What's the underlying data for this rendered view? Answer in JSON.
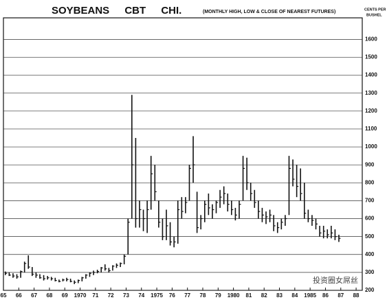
{
  "chart_data": {
    "type": "hlc",
    "title": "SOYBEANS CBT CHI.",
    "subtitle": "(MONTHLY HIGH, LOW & CLOSE OF NEAREST FUTURES)",
    "y_label": [
      "CENTS PER",
      "BUSHEL"
    ],
    "watermark": "投资圈女屌丝",
    "color": "#111111",
    "grid": true,
    "xlim": [
      1965,
      1988.4
    ],
    "ylim": [
      200,
      1720
    ],
    "yticks": [
      200,
      300,
      400,
      500,
      600,
      700,
      800,
      900,
      1000,
      1100,
      1200,
      1300,
      1400,
      1500,
      1600
    ],
    "xticks": [
      {
        "value": 1965,
        "label": "65"
      },
      {
        "value": 1966,
        "label": "66"
      },
      {
        "value": 1967,
        "label": "67"
      },
      {
        "value": 1968,
        "label": "68"
      },
      {
        "value": 1969,
        "label": "69"
      },
      1970,
      {
        "value": 1971,
        "label": "71"
      },
      {
        "value": 1972,
        "label": "72"
      },
      {
        "value": 1973,
        "label": "73"
      },
      {
        "value": 1974,
        "label": "74"
      },
      1975,
      {
        "value": 1976,
        "label": "76"
      },
      {
        "value": 1977,
        "label": "77"
      },
      {
        "value": 1978,
        "label": "78"
      },
      {
        "value": 1979,
        "label": "79"
      },
      1980,
      {
        "value": 1981,
        "label": "81"
      },
      {
        "value": 1982,
        "label": "82"
      },
      {
        "value": 1983,
        "label": "83"
      },
      {
        "value": 1984,
        "label": "84"
      },
      1985,
      {
        "value": 1986,
        "label": "86"
      },
      {
        "value": 1987,
        "label": "87"
      },
      {
        "value": 1988,
        "label": "88"
      }
    ],
    "x": [
      1965.125,
      1965.375,
      1965.625,
      1965.875,
      1966.125,
      1966.375,
      1966.625,
      1966.875,
      1967.125,
      1967.375,
      1967.625,
      1967.875,
      1968.125,
      1968.375,
      1968.625,
      1968.875,
      1969.125,
      1969.375,
      1969.625,
      1969.875,
      1970.125,
      1970.375,
      1970.625,
      1970.875,
      1971.125,
      1971.375,
      1971.625,
      1971.875,
      1972.125,
      1972.375,
      1972.625,
      1972.875,
      1973.125,
      1973.375,
      1973.625,
      1973.875,
      1974.125,
      1974.375,
      1974.625,
      1974.875,
      1975.125,
      1975.375,
      1975.625,
      1975.875,
      1976.125,
      1976.375,
      1976.625,
      1976.875,
      1977.125,
      1977.375,
      1977.625,
      1977.875,
      1978.125,
      1978.375,
      1978.625,
      1978.875,
      1979.125,
      1979.375,
      1979.625,
      1979.875,
      1980.125,
      1980.375,
      1980.625,
      1980.875,
      1981.125,
      1981.375,
      1981.625,
      1981.875,
      1982.125,
      1982.375,
      1982.625,
      1982.875,
      1983.125,
      1983.375,
      1983.625,
      1983.875,
      1984.125,
      1984.375,
      1984.625,
      1984.875,
      1985.125,
      1985.375,
      1985.625,
      1985.875,
      1986.125,
      1986.375,
      1986.625,
      1986.875
    ],
    "high": [
      305,
      300,
      295,
      290,
      310,
      360,
      395,
      330,
      300,
      290,
      285,
      280,
      275,
      270,
      260,
      265,
      270,
      265,
      255,
      260,
      275,
      290,
      300,
      310,
      315,
      330,
      345,
      325,
      340,
      350,
      355,
      400,
      600,
      1290,
      1050,
      700,
      650,
      700,
      950,
      900,
      700,
      600,
      650,
      580,
      500,
      700,
      720,
      720,
      900,
      1060,
      750,
      620,
      700,
      740,
      680,
      700,
      760,
      780,
      740,
      700,
      660,
      700,
      950,
      940,
      800,
      760,
      700,
      660,
      640,
      650,
      620,
      580,
      600,
      620,
      950,
      930,
      900,
      880,
      800,
      650,
      620,
      600,
      560,
      560,
      540,
      560,
      540,
      510
    ],
    "low": [
      285,
      280,
      270,
      265,
      270,
      300,
      320,
      280,
      270,
      265,
      255,
      260,
      255,
      250,
      245,
      250,
      250,
      245,
      235,
      240,
      250,
      265,
      275,
      285,
      295,
      300,
      310,
      300,
      310,
      325,
      330,
      345,
      400,
      600,
      550,
      550,
      530,
      520,
      650,
      700,
      550,
      480,
      480,
      450,
      440,
      460,
      600,
      630,
      700,
      800,
      520,
      540,
      580,
      620,
      600,
      630,
      660,
      680,
      640,
      620,
      590,
      600,
      700,
      760,
      700,
      660,
      600,
      580,
      570,
      580,
      530,
      520,
      540,
      560,
      620,
      780,
      720,
      700,
      600,
      580,
      560,
      540,
      500,
      490,
      490,
      490,
      480,
      470
    ],
    "close": [
      295,
      285,
      280,
      275,
      305,
      350,
      330,
      290,
      285,
      270,
      265,
      270,
      265,
      255,
      250,
      258,
      260,
      250,
      245,
      255,
      270,
      285,
      295,
      300,
      305,
      325,
      320,
      310,
      335,
      340,
      350,
      390,
      580,
      900,
      600,
      650,
      600,
      650,
      850,
      750,
      580,
      500,
      560,
      470,
      470,
      650,
      640,
      690,
      880,
      900,
      550,
      600,
      680,
      660,
      650,
      690,
      720,
      740,
      680,
      650,
      620,
      680,
      880,
      800,
      740,
      690,
      640,
      620,
      610,
      620,
      560,
      550,
      580,
      600,
      880,
      820,
      780,
      740,
      630,
      600,
      590,
      570,
      520,
      530,
      510,
      520,
      500,
      490
    ]
  }
}
